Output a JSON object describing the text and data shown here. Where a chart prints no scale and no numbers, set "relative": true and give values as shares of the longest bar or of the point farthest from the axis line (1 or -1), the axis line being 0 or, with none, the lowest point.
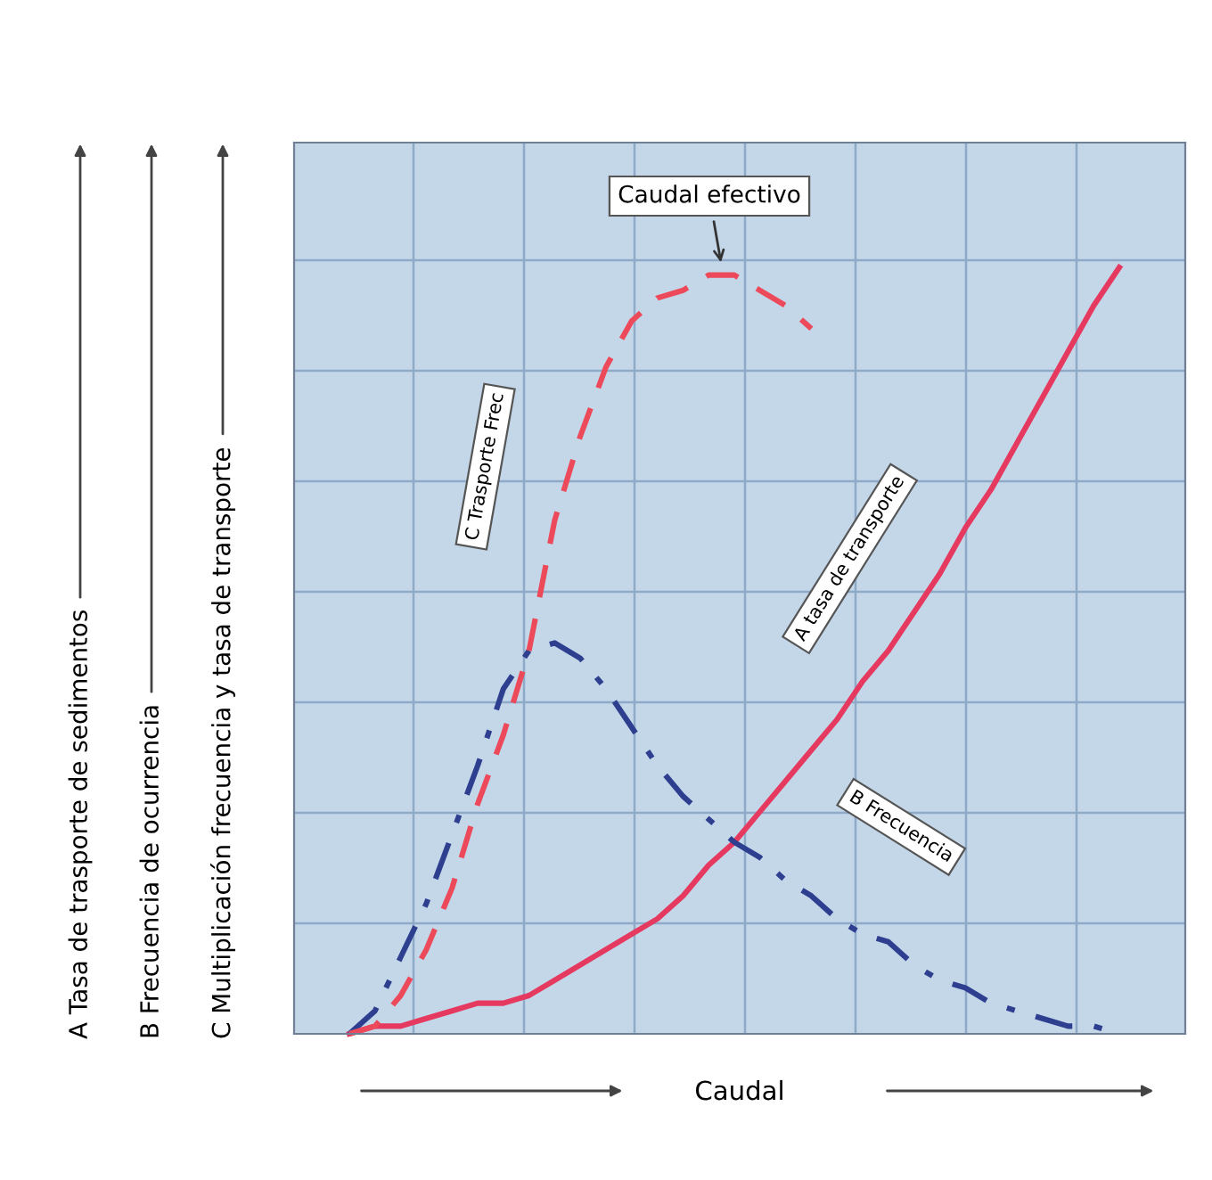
{
  "chart_data": {
    "type": "line",
    "relative": true,
    "xlabel": "Caudal",
    "tick_labels": false,
    "grid": true,
    "legend": false,
    "marker": "none",
    "annotations": [
      "Caudal efectivo",
      "A Tasa de trasporte de sedimentos",
      "B Frecuencia de ocurrencia",
      "C Multiplicación frecuencia y tasa de transporte"
    ],
    "categories": [
      null,
      null,
      null,
      null,
      null,
      null,
      null,
      null,
      null,
      null,
      null,
      null,
      null,
      null,
      null,
      null,
      null,
      null,
      null,
      null,
      null,
      null,
      null,
      null,
      null,
      null,
      null,
      null,
      null,
      null,
      null
    ],
    "series": [
      {
        "name": "A tasa de transporte",
        "color": "#e5395f",
        "line_style": "solid",
        "values": [
          0,
          0.01,
          0.01,
          0.02,
          0.03,
          0.04,
          0.04,
          0.05,
          0.07,
          0.09,
          0.11,
          0.13,
          0.15,
          0.18,
          0.22,
          0.25,
          0.29,
          0.33,
          0.37,
          0.41,
          0.46,
          0.5,
          0.55,
          0.6,
          0.66,
          0.71,
          0.77,
          0.83,
          0.89,
          0.95,
          1.0
        ]
      },
      {
        "name": "B Frecuencia",
        "color": "#2e3f8f",
        "line_style": "dashdot",
        "values": [
          0,
          0.03,
          0.1,
          0.17,
          0.26,
          0.35,
          0.45,
          0.5,
          0.51,
          0.49,
          0.45,
          0.4,
          0.35,
          0.31,
          0.28,
          0.25,
          0.23,
          0.2,
          0.18,
          0.15,
          0.13,
          0.12,
          0.09,
          0.07,
          0.06,
          0.04,
          0.03,
          0.02,
          0.01,
          0.01,
          0.0
        ]
      },
      {
        "name": "C Trasporte Frec",
        "color": "#ec4a5a",
        "line_style": "dashed",
        "values": [
          0,
          0.01,
          0.05,
          0.11,
          0.19,
          0.3,
          0.39,
          0.5,
          0.67,
          0.78,
          0.87,
          0.93,
          0.96,
          0.97,
          0.99,
          0.99,
          0.97,
          0.95,
          0.92,
          null,
          null,
          null,
          null,
          null,
          null,
          null,
          null,
          null,
          null,
          null,
          null
        ]
      }
    ]
  }
}
